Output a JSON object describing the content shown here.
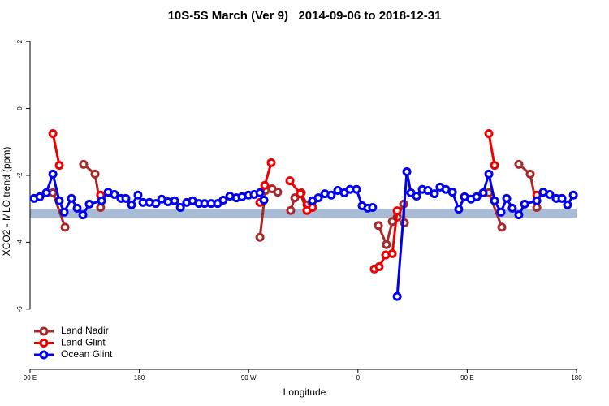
{
  "chart_data": {
    "type": "line",
    "title": "10S-5S March (Ver 9)   2014-09-06 to 2018-12-31",
    "xlabel": "Longitude",
    "ylabel": "XCO2 - MLO trend (ppm)",
    "xlim": [
      90,
      540
    ],
    "ylim": [
      -7.8,
      2.27
    ],
    "xticks": [
      {
        "value": 90,
        "label": "90 E"
      },
      {
        "value": 180,
        "label": "180"
      },
      {
        "value": 270,
        "label": "90 W"
      },
      {
        "value": 360,
        "label": "0"
      },
      {
        "value": 450,
        "label": "90 E"
      },
      {
        "value": 540,
        "label": "180"
      }
    ],
    "yticks": [
      2,
      0,
      -2,
      -4,
      -6
    ],
    "band": [
      -3.27,
      -3.0
    ],
    "band_color": "#a9bcd6",
    "legend": "bottom-left",
    "series": [
      {
        "name": "Land Nadir",
        "color": "#a52a2a",
        "x": [
          108.8,
          118.8,
          null,
          134.1,
          143.5,
          148.1,
          null,
          279.3,
          283.9,
          289.3,
          293.9,
          null,
          304.6,
          308.0,
          313.4,
          318.0,
          322.0,
          null,
          376.9,
          383.5,
          388.3,
          392.3,
          397.6,
          398.3,
          null,
          467.8,
          478.5,
          null,
          492.5,
          501.9,
          507.3
        ],
        "values": [
          -2.52,
          -3.55,
          null,
          -1.67,
          -1.96,
          -2.96,
          null,
          -3.85,
          -2.45,
          -2.4,
          -2.5,
          null,
          -3.05,
          -2.67,
          -2.52,
          -2.88,
          -2.83,
          null,
          -3.5,
          -4.07,
          -3.38,
          -3.25,
          -2.86,
          -3.42,
          null,
          -2.52,
          -3.55,
          null,
          -1.67,
          -1.96,
          -2.96
        ]
      },
      {
        "name": "Land Glint",
        "color": "#ee0000",
        "x": [
          108.8,
          114.1,
          null,
          148.1,
          null,
          279.3,
          283.3,
          288.6,
          null,
          304.0,
          312.6,
          318.0,
          322.6,
          null,
          373.5,
          377.5,
          382.9,
          388.3,
          392.3,
          null,
          467.8,
          472.5,
          null,
          507.3
        ],
        "values": [
          -0.75,
          -1.7,
          null,
          -2.59,
          null,
          -2.81,
          -2.3,
          -1.62,
          null,
          -2.16,
          -2.55,
          -3.05,
          -2.96,
          null,
          -4.8,
          -4.73,
          -4.38,
          -4.34,
          -3.06,
          null,
          -0.75,
          -1.7,
          null,
          -2.59
        ]
      },
      {
        "name": "Ocean Glint",
        "color": "#0000ee",
        "x": [
          93.4,
          98.0,
          103.4,
          108.8,
          114.1,
          118.1,
          124.1,
          128.8,
          133.5,
          138.8,
          148.9,
          154.3,
          159.5,
          164.9,
          168.9,
          173.6,
          178.9,
          183.0,
          188.3,
          193.6,
          198.4,
          203.6,
          209.0,
          213.8,
          219.0,
          223.8,
          229.1,
          233.8,
          239.1,
          244.5,
          249.1,
          254.5,
          259.9,
          264.5,
          269.9,
          274.5,
          279.3,
          282.6,
          null,
          322.6,
          327.4,
          332.8,
          338.0,
          343.4,
          348.8,
          353.5,
          358.8,
          363.5,
          368.1,
          372.1,
          null,
          392.3,
          400.3,
          403.6,
          408.3,
          413.0,
          417.6,
          423.0,
          427.6,
          432.4,
          437.8,
          443.0,
          447.8,
          453.1,
          457.8,
          463.1,
          467.8,
          472.5,
          477.8,
          482.5,
          487.1,
          492.5,
          497.3,
          507.3,
          512.6,
          517.9,
          523.3,
          528.0,
          532.6,
          537.4
        ],
        "values": [
          -2.69,
          -2.64,
          -2.52,
          -1.96,
          -2.76,
          -3.1,
          -2.69,
          -2.98,
          -3.18,
          -2.86,
          -2.76,
          -2.5,
          -2.57,
          -2.69,
          -2.69,
          -2.88,
          -2.59,
          -2.81,
          -2.81,
          -2.84,
          -2.71,
          -2.79,
          -2.76,
          -2.96,
          -2.81,
          -2.76,
          -2.84,
          -2.84,
          -2.84,
          -2.84,
          -2.74,
          -2.62,
          -2.67,
          -2.64,
          -2.59,
          -2.57,
          -2.52,
          -2.74,
          null,
          -2.76,
          -2.67,
          -2.55,
          -2.59,
          -2.45,
          -2.52,
          -2.42,
          -2.42,
          -2.91,
          -2.98,
          -2.96,
          null,
          -5.62,
          -1.89,
          -2.52,
          -2.62,
          -2.42,
          -2.45,
          -2.55,
          -2.35,
          -2.42,
          -2.5,
          -3.01,
          -2.64,
          -2.71,
          -2.64,
          -2.52,
          -1.96,
          -2.76,
          -3.1,
          -2.69,
          -2.98,
          -3.18,
          -2.86,
          -2.76,
          -2.5,
          -2.57,
          -2.69,
          -2.69,
          -2.88,
          -2.59
        ]
      }
    ]
  }
}
